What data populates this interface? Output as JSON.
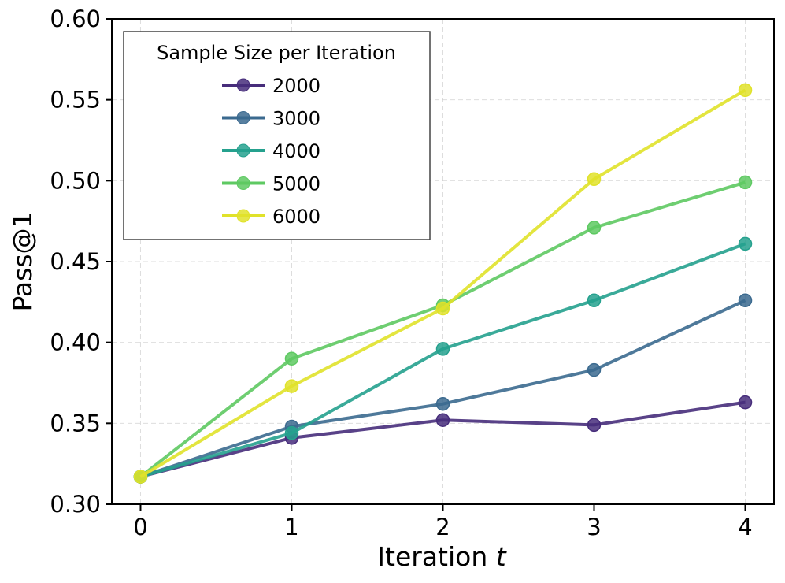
{
  "chart_data": {
    "type": "line",
    "xlabel": "Iteration",
    "xlabel_var": "t",
    "ylabel": "Pass@1",
    "x": [
      0,
      1,
      2,
      3,
      4
    ],
    "x_tick_labels": [
      "0",
      "1",
      "2",
      "3",
      "4"
    ],
    "ylim": [
      0.3,
      0.6
    ],
    "y_ticks": [
      0.3,
      0.35,
      0.4,
      0.45,
      0.5,
      0.55,
      0.6
    ],
    "y_tick_labels": [
      "0.30",
      "0.35",
      "0.40",
      "0.45",
      "0.50",
      "0.55",
      "0.60"
    ],
    "grid": true,
    "legend": {
      "title": "Sample Size per Iteration",
      "placement": "upper-left"
    },
    "series": [
      {
        "name": "2000",
        "color": "#472d7b",
        "values": [
          0.317,
          0.341,
          0.352,
          0.349,
          0.363
        ]
      },
      {
        "name": "3000",
        "color": "#3b6a8f",
        "values": [
          0.317,
          0.348,
          0.362,
          0.383,
          0.426
        ]
      },
      {
        "name": "4000",
        "color": "#25a18e",
        "values": [
          0.317,
          0.344,
          0.396,
          0.426,
          0.461
        ]
      },
      {
        "name": "5000",
        "color": "#5ec962",
        "values": [
          0.317,
          0.39,
          0.423,
          0.471,
          0.499
        ]
      },
      {
        "name": "6000",
        "color": "#e0e22a",
        "values": [
          0.317,
          0.373,
          0.421,
          0.501,
          0.556
        ]
      }
    ]
  }
}
